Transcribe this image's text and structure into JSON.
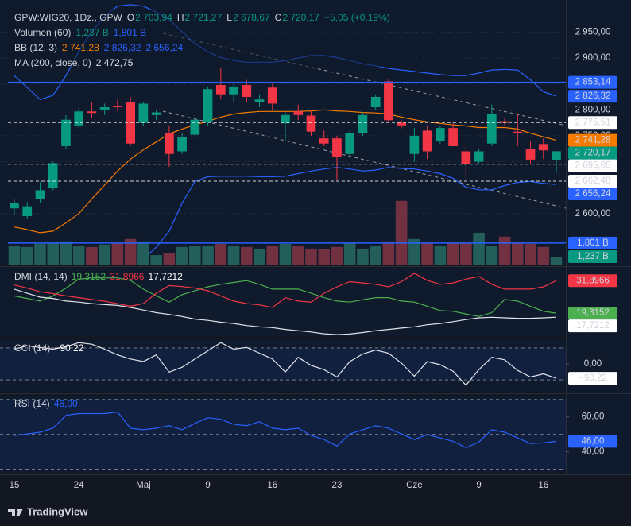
{
  "header": {
    "symbol": "GPW:WIG20, 1Dz., GPW",
    "ohlc": [
      {
        "label": "O",
        "value": "2 703,94"
      },
      {
        "label": "H",
        "value": "2 721,27"
      },
      {
        "label": "L",
        "value": "2 678,67"
      },
      {
        "label": "C",
        "value": "2 720,17"
      }
    ],
    "ohlc_color": "#089981",
    "change": "+5,05 (+0,19%)",
    "indicators": [
      {
        "name": "Volumen (60)",
        "values": [
          "1,237 B",
          "1,801 B"
        ],
        "colors": [
          "#089981",
          "#2962ff"
        ]
      },
      {
        "name": "BB (12, 3)",
        "values": [
          "2 741,28",
          "2 826,32",
          "2 656,24"
        ],
        "colors": [
          "#f57c00",
          "#2962ff",
          "#2962ff"
        ]
      },
      {
        "name": "MA (200, close, 0)",
        "values": [
          "2 472,75"
        ],
        "colors": [
          "#e0e3eb"
        ]
      }
    ]
  },
  "footer": {
    "brand": "TradingView"
  },
  "chart_data": [
    {
      "type": "candlestick",
      "up_color": "#089981",
      "down_color": "#f23645",
      "grid": true,
      "categories": [
        "15",
        null,
        null,
        null,
        null,
        "24",
        null,
        null,
        null,
        null,
        "Maj",
        null,
        null,
        null,
        null,
        "9",
        null,
        null,
        null,
        null,
        "16",
        null,
        null,
        null,
        null,
        "23",
        null,
        null,
        null,
        null,
        null,
        "Cze",
        null,
        null,
        null,
        null,
        "9",
        null,
        null,
        null,
        null,
        "16",
        null
      ],
      "open": [
        2610,
        2595,
        2628,
        2650,
        2730,
        2770,
        2797,
        2800,
        2808,
        2815,
        2775,
        2790,
        2755,
        2720,
        2752,
        2777,
        2848,
        2830,
        2848,
        2815,
        2843,
        2774,
        2797,
        2789,
        2745,
        2745,
        2715,
        2755,
        2805,
        2855,
        2775,
        2715,
        2760,
        2740,
        2765,
        2720,
        2700,
        2735,
        2778,
        2758,
        2724,
        2734,
        2703.94
      ],
      "high": [
        2627,
        2622,
        2660,
        2700,
        2790,
        2805,
        2815,
        2812,
        2820,
        2825,
        2815,
        2800,
        2770,
        2755,
        2790,
        2845,
        2880,
        2850,
        2858,
        2830,
        2850,
        2795,
        2810,
        2800,
        2760,
        2750,
        2760,
        2795,
        2830,
        2860,
        2780,
        2765,
        2770,
        2770,
        2775,
        2730,
        2725,
        2810,
        2785,
        2792,
        2740,
        2745,
        2721.27
      ],
      "low": [
        2597,
        2590,
        2620,
        2645,
        2725,
        2765,
        2785,
        2790,
        2798,
        2730,
        2770,
        2780,
        2690,
        2715,
        2745,
        2770,
        2820,
        2815,
        2815,
        2805,
        2800,
        2740,
        2780,
        2750,
        2730,
        2665,
        2710,
        2750,
        2800,
        2775,
        2765,
        2700,
        2705,
        2735,
        2730,
        2665,
        2695,
        2730,
        2770,
        2730,
        2695,
        2705,
        2678.67
      ],
      "close": [
        2621,
        2614,
        2645,
        2697,
        2781,
        2797,
        2794,
        2805,
        2805,
        2735,
        2812,
        2795,
        2715,
        2748,
        2781,
        2840,
        2830,
        2845,
        2825,
        2820,
        2812,
        2790,
        2790,
        2758,
        2735,
        2710,
        2755,
        2790,
        2825,
        2780,
        2770,
        2750,
        2720,
        2765,
        2730,
        2695,
        2720,
        2792,
        2775,
        2755,
        2704,
        2722,
        2720.17
      ],
      "series": [
        {
          "color": "#2962ff",
          "values": [
            2866,
            2843,
            2820,
            2828,
            2866,
            2912,
            2951,
            2981,
            3000,
            3003,
            3000,
            2989,
            2974,
            2951,
            2928,
            2912,
            2901,
            2895,
            2892,
            2892,
            2892,
            2895,
            2900,
            2905,
            2905,
            2901,
            2895,
            2889,
            2885,
            2880,
            2877,
            2874,
            2871,
            2868,
            2866,
            2866,
            2871,
            2877,
            2878,
            2877,
            2858,
            2835,
            2826.32
          ]
        },
        {
          "color": "#f57c00",
          "values": [
            2574,
            2569,
            2563,
            2566,
            2582,
            2600,
            2628,
            2655,
            2682,
            2705,
            2723,
            2738,
            2754,
            2763,
            2771,
            2778,
            2786,
            2792,
            2795,
            2797,
            2797,
            2797,
            2797,
            2798,
            2800,
            2798,
            2797,
            2795,
            2794,
            2792,
            2786,
            2781,
            2777,
            2774,
            2771,
            2769,
            2766,
            2766,
            2766,
            2763,
            2755,
            2748,
            2741.28
          ]
        },
        {
          "color": "#2962ff",
          "values": [
            null,
            null,
            null,
            null,
            null,
            null,
            null,
            null,
            null,
            null,
            2512,
            2535,
            2566,
            2620,
            2662,
            2671,
            2672,
            2672,
            2672,
            2671,
            2671,
            2672,
            2677,
            2682,
            2686,
            2689,
            2686,
            2682,
            2684,
            2689,
            2687,
            2686,
            2682,
            2677,
            2668,
            2651,
            2646,
            2646,
            2654,
            2660,
            2662,
            2658,
            2656.24
          ]
        }
      ],
      "ylim": [
        2500,
        3012
      ],
      "yticks": [
        {
          "value": 2600,
          "label": "2 600,00"
        },
        {
          "value": 2650,
          "label": "2 650,00"
        },
        {
          "value": 2700,
          "label": "2 700,00"
        },
        {
          "value": 2750,
          "label": "2 750,00"
        },
        {
          "value": 2800,
          "label": "2 800,00"
        },
        {
          "value": 2850,
          "label": "2 850,00"
        },
        {
          "value": 2900,
          "label": "2 900,00"
        },
        {
          "value": 2950,
          "label": "2 950,00"
        }
      ],
      "price_tags": [
        {
          "value": 2853.14,
          "label": "2 853,14",
          "color": "#2962ff",
          "line": "solid"
        },
        {
          "value": 2826.32,
          "label": "2 826,32",
          "color": "#2962ff"
        },
        {
          "value": 2775.51,
          "label": "2 775,51",
          "color": "#ffffff",
          "line": "dashed"
        },
        {
          "value": 2741.28,
          "label": "2 741,28",
          "color": "#f57c00"
        },
        {
          "value": 2720.17,
          "label": "2 720,17",
          "color": "#089981"
        },
        {
          "value": 2695.05,
          "label": "2 695,05",
          "color": "#ffffff",
          "line": "dashed"
        },
        {
          "value": 2662.48,
          "label": "2 662,48",
          "color": "#ffffff",
          "line": "dashed"
        },
        {
          "value": 2656.24,
          "label": "2 656,24",
          "color": "#2962ff"
        }
      ]
    },
    {
      "type": "bar",
      "up_color": "#26665f",
      "down_color": "#7d3442",
      "values": [
        1.7,
        1.64,
        1.77,
        1.8,
        1.87,
        1.7,
        1.64,
        1.74,
        1.8,
        1.97,
        1.87,
        1.3,
        1.37,
        1.64,
        1.7,
        1.7,
        1.77,
        1.7,
        1.64,
        1.57,
        1.7,
        1.77,
        1.7,
        1.57,
        1.54,
        1.64,
        1.8,
        1.57,
        1.7,
        1.87,
        3.56,
        1.97,
        1.8,
        1.7,
        1.8,
        1.8,
        2.23,
        1.7,
        2.07,
        1.83,
        1.77,
        1.64,
        1.237
      ],
      "ylim": [
        0.872,
        11.92
      ],
      "price_tags": [
        {
          "value": 1.801,
          "label": "1,801 B",
          "color": "#2962ff",
          "line": "solid"
        },
        {
          "value": 1.237,
          "label": "1,237 B",
          "color": "#089981"
        }
      ]
    },
    {
      "type": "line",
      "title": "DMI (14, 14)",
      "ylim": [
        10.4,
        36.9
      ],
      "series": [
        {
          "color": "#4caf50",
          "label": "19,3152",
          "values": [
            26.0,
            25.0,
            24.0,
            26.0,
            29.0,
            32.5,
            33.0,
            33.0,
            33.0,
            32.0,
            28.6,
            26.0,
            23.6,
            26.5,
            28.0,
            29.5,
            30.5,
            31.2,
            31.9,
            30.5,
            28.6,
            28.6,
            28.6,
            27.0,
            25.3,
            24.0,
            23.6,
            24.5,
            25.3,
            25.3,
            24.0,
            23.6,
            22.0,
            20.3,
            20.0,
            19.0,
            18.0,
            19.5,
            24.6,
            24.0,
            22.0,
            20.0,
            19.3152
          ]
        },
        {
          "color": "#f23645",
          "label": "31,8966",
          "values": [
            30.2,
            29.0,
            27.6,
            26.9,
            26.0,
            25.3,
            24.6,
            23.9,
            23.0,
            22.0,
            23.0,
            27.0,
            30.0,
            29.6,
            29.0,
            28.0,
            26.0,
            24.0,
            23.0,
            22.5,
            21.5,
            25.3,
            24.0,
            23.6,
            27.0,
            29.5,
            31.5,
            31.0,
            30.5,
            29.5,
            31.5,
            34.8,
            32.0,
            30.5,
            31.0,
            32.5,
            33.5,
            30.5,
            28.6,
            28.6,
            28.6,
            29.5,
            31.8966
          ]
        },
        {
          "color": "#e0e3eb",
          "label": "17,7212",
          "values": [
            28.6,
            27.0,
            25.5,
            25.0,
            24.0,
            23.6,
            23.0,
            22.6,
            22.3,
            21.5,
            20.5,
            19.5,
            18.8,
            18.0,
            17.0,
            16.5,
            15.8,
            15.3,
            14.5,
            14.0,
            13.7,
            13.0,
            12.5,
            12.0,
            11.3,
            11.0,
            11.2,
            11.8,
            12.5,
            13.0,
            13.5,
            14.0,
            14.8,
            15.3,
            16.0,
            16.8,
            17.5,
            17.7,
            17.5,
            17.3,
            17.3,
            17.5,
            17.7212
          ]
        }
      ]
    },
    {
      "type": "line",
      "title": "CCI (14)",
      "ylim": [
        -174,
        154
      ],
      "yticks": [
        {
          "value": 0,
          "label": "0,00"
        }
      ],
      "bands": [
        100,
        -100
      ],
      "series": [
        {
          "color": "#e0e3eb",
          "label": "−90,22",
          "values": [
            92,
            113,
            103,
            92,
            108,
            133,
            123,
            92,
            56,
            31,
            15,
            56,
            -51,
            -21,
            31,
            82,
            133,
            92,
            103,
            67,
            31,
            -51,
            41,
            -10,
            -36,
            -82,
            15,
            62,
            87,
            67,
            5,
            -77,
            15,
            -5,
            -46,
            -133,
            -36,
            41,
            26,
            -41,
            -82,
            -62,
            -90.22
          ]
        }
      ]
    },
    {
      "type": "line",
      "title": "RSI (14)",
      "ylim": [
        28.4,
        72.6
      ],
      "yticks": [
        {
          "value": 40,
          "label": "40,00"
        },
        {
          "value": 60,
          "label": "60,00"
        }
      ],
      "bands": [
        70,
        50,
        30
      ],
      "series": [
        {
          "color": "#2962ff",
          "label": "46,00",
          "values": [
            49.3,
            50.2,
            51.2,
            53.5,
            60.9,
            61.9,
            61.9,
            61.9,
            62.8,
            53.5,
            52.6,
            53.5,
            54.9,
            52.6,
            56.3,
            59.5,
            58.6,
            55.8,
            54.9,
            57.2,
            53.5,
            52.6,
            53.5,
            49.3,
            47.0,
            43.3,
            50.2,
            52.6,
            54.9,
            53.5,
            50.2,
            47.0,
            49.8,
            47.9,
            46.0,
            42.3,
            45.6,
            52.6,
            51.2,
            47.9,
            44.7,
            45.1,
            46
          ]
        }
      ]
    }
  ]
}
